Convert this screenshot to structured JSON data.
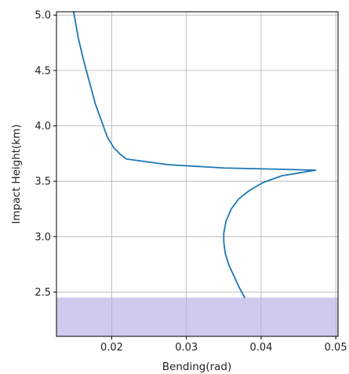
{
  "chart_data": {
    "type": "line",
    "title": "",
    "xlabel": "Bending(rad)",
    "ylabel": "Impact Height(km)",
    "xlim": [
      0.0126,
      0.0503
    ],
    "ylim": [
      2.1,
      5.03
    ],
    "x_ticks": [
      0.02,
      0.03,
      0.04,
      0.05
    ],
    "x_tick_labels": [
      "0.02",
      "0.03",
      "0.04",
      "0.05"
    ],
    "y_ticks": [
      2.5,
      3.0,
      3.5,
      4.0,
      4.5,
      5.0
    ],
    "y_tick_labels": [
      "2.5",
      "3.0",
      "3.5",
      "4.0",
      "4.5",
      "5.0"
    ],
    "grid": true,
    "legend": false,
    "colors": {
      "line": "#1f77b4",
      "shaded_region": "#cfcbee"
    },
    "shaded_region": {
      "y_from": 2.1,
      "y_to": 2.45
    },
    "series": [
      {
        "x": [
          0.0149,
          0.0155,
          0.0162,
          0.017,
          0.0178,
          0.0186,
          0.0194,
          0.0203,
          0.0212,
          0.022,
          0.0275,
          0.035,
          0.0415,
          0.0473,
          0.0455,
          0.0428,
          0.0403,
          0.0385,
          0.037,
          0.036,
          0.0353,
          0.035,
          0.035,
          0.0352,
          0.0357,
          0.0364,
          0.037,
          0.0378
        ],
        "y": [
          5.03,
          4.8,
          4.6,
          4.4,
          4.2,
          4.05,
          3.9,
          3.8,
          3.74,
          3.7,
          3.65,
          3.62,
          3.61,
          3.6,
          3.58,
          3.55,
          3.49,
          3.42,
          3.34,
          3.25,
          3.14,
          3.03,
          2.95,
          2.85,
          2.74,
          2.64,
          2.55,
          2.45
        ]
      }
    ]
  }
}
